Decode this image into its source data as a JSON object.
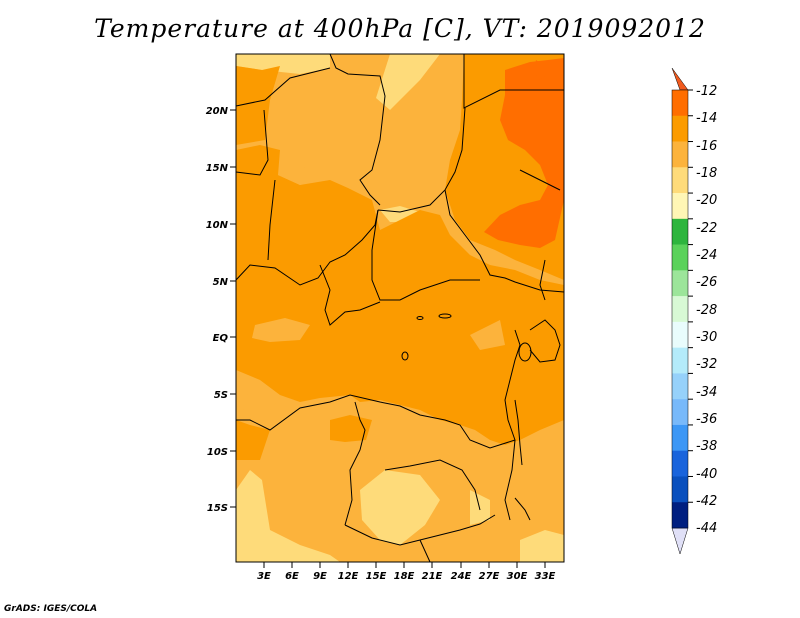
{
  "title": "Temperature at 400hPa [C], VT: 2019092012",
  "credit": "GrADS: IGES/COLA",
  "lat_labels": [
    "20N",
    "15N",
    "10N",
    "5N",
    "EQ",
    "5S",
    "10S",
    "15S"
  ],
  "lon_labels": [
    "3E",
    "6E",
    "9E",
    "12E",
    "15E",
    "18E",
    "21E",
    "24E",
    "27E",
    "30E",
    "33E"
  ],
  "colorbar": {
    "labels": [
      "-12",
      "-14",
      "-16",
      "-18",
      "-20",
      "-22",
      "-24",
      "-26",
      "-28",
      "-30",
      "-32",
      "-34",
      "-36",
      "-38",
      "-40",
      "-42",
      "-44"
    ],
    "colors": [
      "#f15a1e",
      "#ff6e00",
      "#fb9b00",
      "#fcb33c",
      "#fedb7a",
      "#fff6b5",
      "#2db53d",
      "#5ad25a",
      "#9ce59a",
      "#d8f9d5",
      "#e9fcfc",
      "#b4ebfa",
      "#96d1fa",
      "#78b9fa",
      "#3c97f5",
      "#1964dc",
      "#0a50be",
      "#001f80",
      "#e0e0f7"
    ]
  },
  "map_colors": {
    "cold": "#fedb7a",
    "cool": "#fcb33c",
    "mid": "#fb9b00",
    "warm": "#ff6e00"
  }
}
